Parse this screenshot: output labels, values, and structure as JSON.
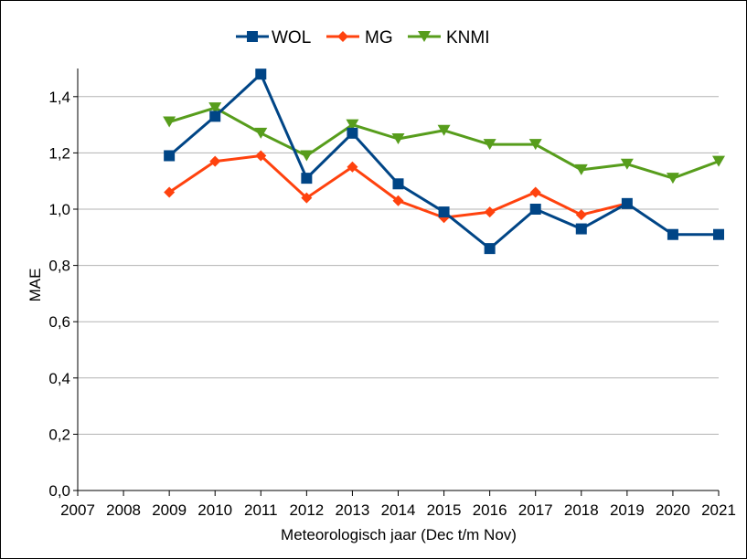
{
  "chart_data": {
    "type": "line",
    "xlabel": "Meteorologisch jaar (Dec t/m Nov)",
    "ylabel": "MAE",
    "x_ticks": [
      "2007",
      "2008",
      "2009",
      "2010",
      "2011",
      "2012",
      "2013",
      "2014",
      "2015",
      "2016",
      "2017",
      "2018",
      "2019",
      "2020",
      "2021"
    ],
    "y_ticks": [
      "0,0",
      "0,2",
      "0,4",
      "0,6",
      "0,8",
      "1,0",
      "1,2",
      "1,4"
    ],
    "xlim": [
      2007,
      2021
    ],
    "ylim": [
      0,
      1.5
    ],
    "grid": true,
    "legend_position": "top-center",
    "series": [
      {
        "name": "WOL",
        "color": "#004586",
        "marker": "square",
        "x": [
          2009,
          2010,
          2011,
          2012,
          2013,
          2014,
          2015,
          2016,
          2017,
          2018,
          2019,
          2020,
          2021
        ],
        "values": [
          1.19,
          1.33,
          1.48,
          1.11,
          1.27,
          1.09,
          0.99,
          0.86,
          1.0,
          0.93,
          1.02,
          0.91,
          0.91
        ]
      },
      {
        "name": "MG",
        "color": "#ff420e",
        "marker": "diamond",
        "x": [
          2009,
          2010,
          2011,
          2012,
          2013,
          2014,
          2015,
          2016,
          2017,
          2018,
          2019
        ],
        "values": [
          1.06,
          1.17,
          1.19,
          1.04,
          1.15,
          1.03,
          0.97,
          0.99,
          1.06,
          0.98,
          1.02
        ]
      },
      {
        "name": "KNMI",
        "color": "#579d1c",
        "marker": "triangle-down",
        "x": [
          2009,
          2010,
          2011,
          2012,
          2013,
          2014,
          2015,
          2016,
          2017,
          2018,
          2019,
          2020,
          2021
        ],
        "values": [
          1.31,
          1.36,
          1.27,
          1.19,
          1.3,
          1.25,
          1.28,
          1.23,
          1.23,
          1.14,
          1.16,
          1.11,
          1.17
        ]
      }
    ]
  }
}
